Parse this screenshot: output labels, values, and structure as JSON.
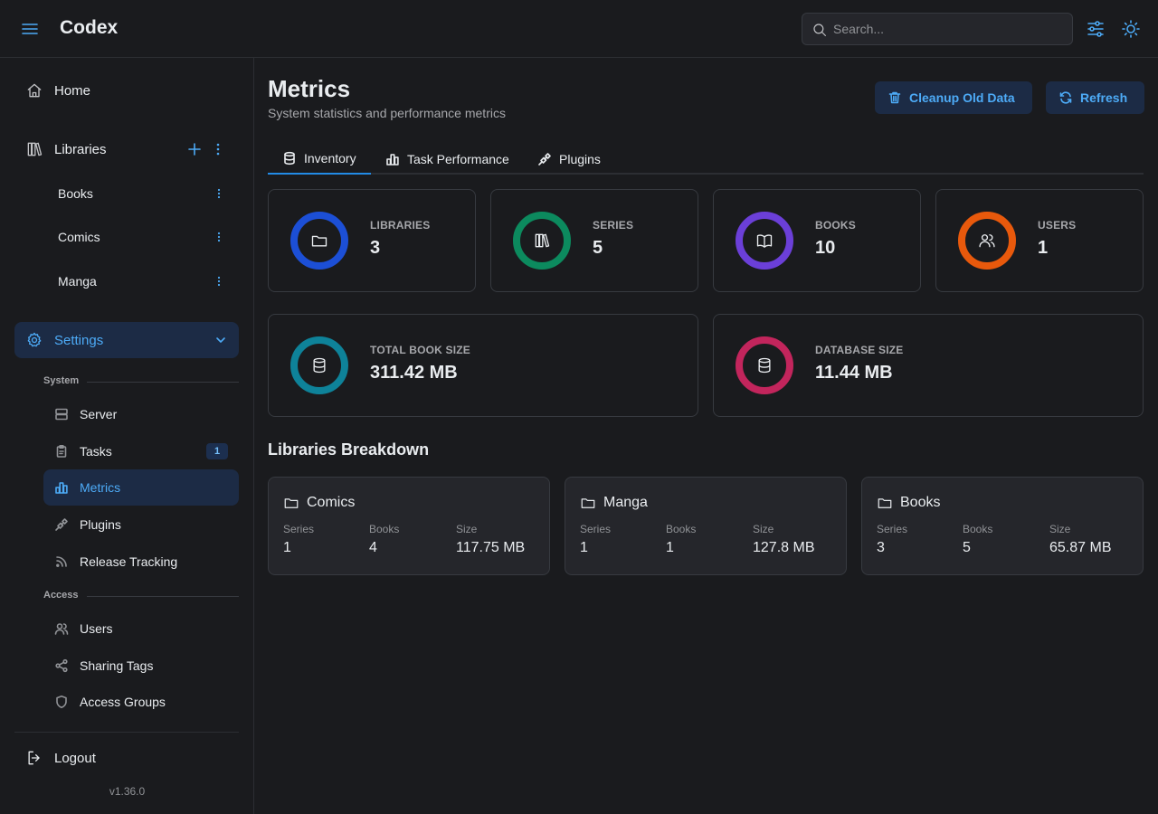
{
  "header": {
    "brand": "Codex",
    "search_placeholder": "Search..."
  },
  "sidebar": {
    "home": "Home",
    "libraries": "Libraries",
    "library_items": [
      "Books",
      "Comics",
      "Manga"
    ],
    "settings": "Settings",
    "system_group": "System",
    "system_items": [
      {
        "label": "Server",
        "icon": "server-icon"
      },
      {
        "label": "Tasks",
        "icon": "clipboard-icon",
        "badge": "1"
      },
      {
        "label": "Metrics",
        "icon": "bar-chart-icon"
      },
      {
        "label": "Plugins",
        "icon": "plug-icon"
      },
      {
        "label": "Release Tracking",
        "icon": "rss-icon"
      }
    ],
    "access_group": "Access",
    "access_items": [
      {
        "label": "Users",
        "icon": "users-icon"
      },
      {
        "label": "Sharing Tags",
        "icon": "share-icon"
      },
      {
        "label": "Access Groups",
        "icon": "shield-icon"
      }
    ],
    "logout": "Logout",
    "version": "v1.36.0"
  },
  "main": {
    "title": "Metrics",
    "subtitle": "System statistics and performance metrics",
    "cleanup_label": "Cleanup Old Data",
    "refresh_label": "Refresh",
    "tabs": [
      {
        "label": "Inventory",
        "icon": "database-icon",
        "active": true
      },
      {
        "label": "Task Performance",
        "icon": "bar-chart-icon",
        "active": false
      },
      {
        "label": "Plugins",
        "icon": "plug-icon",
        "active": false
      }
    ],
    "stats": [
      {
        "label": "LIBRARIES",
        "value": "3",
        "color": "#1c4fd6",
        "icon": "folder-icon"
      },
      {
        "label": "SERIES",
        "value": "5",
        "color": "#0c8a5e",
        "icon": "books-icon"
      },
      {
        "label": "BOOKS",
        "value": "10",
        "color": "#6b3fd8",
        "icon": "book-open-icon"
      },
      {
        "label": "USERS",
        "value": "1",
        "color": "#e8590c",
        "icon": "users-icon"
      },
      {
        "label": "TOTAL BOOK SIZE",
        "value": "311.42 MB",
        "color": "#0e8299",
        "icon": "database-icon"
      },
      {
        "label": "DATABASE SIZE",
        "value": "11.44 MB",
        "color": "#c2255c",
        "icon": "database-icon"
      }
    ],
    "breakdown_title": "Libraries Breakdown",
    "breakdown_fields": [
      "Series",
      "Books",
      "Size"
    ],
    "breakdown": [
      {
        "name": "Comics",
        "series": "1",
        "books": "4",
        "size": "117.75 MB"
      },
      {
        "name": "Manga",
        "series": "1",
        "books": "1",
        "size": "127.8 MB"
      },
      {
        "name": "Books",
        "series": "3",
        "books": "5",
        "size": "65.87 MB"
      }
    ]
  }
}
